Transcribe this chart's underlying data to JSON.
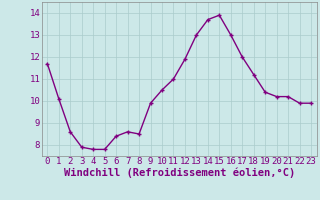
{
  "hours": [
    0,
    1,
    2,
    3,
    4,
    5,
    6,
    7,
    8,
    9,
    10,
    11,
    12,
    13,
    14,
    15,
    16,
    17,
    18,
    19,
    20,
    21,
    22,
    23
  ],
  "values": [
    11.7,
    10.1,
    8.6,
    7.9,
    7.8,
    7.8,
    8.4,
    8.6,
    8.5,
    9.9,
    10.5,
    11.0,
    11.9,
    13.0,
    13.7,
    13.9,
    13.0,
    12.0,
    11.2,
    10.4,
    10.2,
    10.2,
    9.9,
    9.9
  ],
  "line_color": "#800080",
  "marker": "+",
  "bg_color": "#cce8e8",
  "grid_color": "#aacccc",
  "xlabel": "Windchill (Refroidissement éolien,°C)",
  "xlim": [
    -0.5,
    23.5
  ],
  "ylim": [
    7.5,
    14.5
  ],
  "yticks": [
    8,
    9,
    10,
    11,
    12,
    13,
    14
  ],
  "xtick_labels": [
    "0",
    "1",
    "2",
    "3",
    "4",
    "5",
    "6",
    "7",
    "8",
    "9",
    "10",
    "11",
    "12",
    "13",
    "14",
    "15",
    "16",
    "17",
    "18",
    "19",
    "20",
    "21",
    "22",
    "23"
  ],
  "tick_fontsize": 6.5,
  "xlabel_fontsize": 7.5,
  "marker_size": 3,
  "line_width": 1.0
}
